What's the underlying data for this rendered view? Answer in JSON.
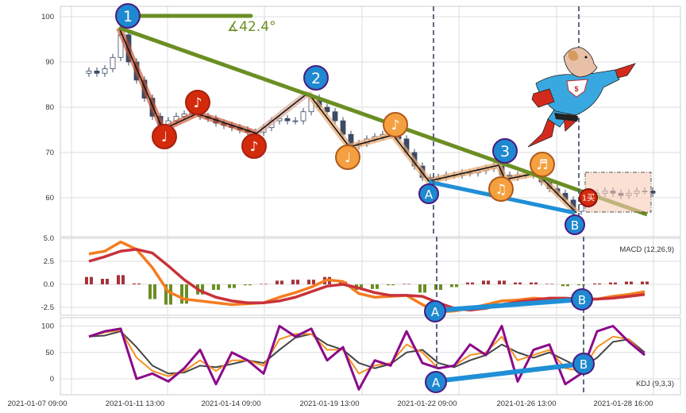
{
  "chart_data": {
    "type": "candlestick",
    "x_tick_labels": [
      "2021-01-07 09:00",
      "2021-01-11 13:00",
      "2021-01-14 09:00",
      "2021-01-19 13:00",
      "2021-01-22 09:00",
      "2021-01-26 13:00",
      "2021-01-28 16:00"
    ],
    "price": {
      "y_ticks": [
        60,
        70,
        80,
        90,
        100
      ],
      "ylim": [
        52,
        102.5
      ],
      "closes": [
        88,
        87.5,
        88.5,
        91,
        96,
        90,
        86,
        82,
        78,
        76,
        77,
        78,
        78.5,
        79,
        78,
        77.5,
        76.5,
        76,
        75.5,
        75,
        74.5,
        74.5,
        75.5,
        77,
        77.5,
        77,
        77,
        79,
        82,
        80,
        79,
        77,
        74,
        71.5,
        72,
        73,
        73.5,
        74,
        74,
        73,
        70,
        67,
        64.5,
        64,
        64.5,
        65,
        65,
        65.5,
        65.5,
        66,
        66.5,
        67,
        65,
        64.5,
        65,
        65,
        65.5,
        63.5,
        62,
        61,
        59.5,
        57,
        58.5,
        60,
        61,
        61.5,
        61,
        60.5,
        61,
        61.5,
        61.5,
        61
      ],
      "first_open": 87.5,
      "angle_label": "∡42.4°",
      "wave_labels": [
        "1",
        "2",
        "3"
      ],
      "divergence_labels": [
        "A",
        "B"
      ],
      "buy_signal": "1买",
      "note_icons": [
        "♩",
        "♪",
        "♪",
        "♩",
        "♪",
        "♫",
        "♬"
      ],
      "colors": {
        "up": "#ffffff",
        "down": "#3b4a66",
        "trend": "#6b8e23",
        "divergence": "#1f8fd6",
        "marker": "#1e88d0",
        "note_red": "#d42a0c",
        "note_orange": "#f5a040"
      }
    },
    "macd": {
      "label": "MACD (12,26,9)",
      "y_ticks": [
        -2.5,
        0.0,
        2.5,
        5.0
      ],
      "y_tick_labels": [
        "-2.5",
        "0.0",
        "2.5",
        "5.0"
      ],
      "ylim": [
        -3.3,
        5.0
      ],
      "sample_every": 2,
      "dif": [
        3.3,
        3.6,
        4.6,
        3.8,
        1.8,
        -0.8,
        -1.6,
        -1.8,
        -2.0,
        -2.2,
        -2.1,
        -2.0,
        -1.4,
        -0.9,
        -0.3,
        0.5,
        0.3,
        -1.0,
        -1.4,
        -1.3,
        -1.2,
        -2.2,
        -3.0,
        -2.9,
        -2.6,
        -2.2,
        -1.8,
        -1.7,
        -1.5,
        -1.6,
        -1.7,
        -1.7,
        -1.6,
        -1.3,
        -1.1,
        -0.8
      ],
      "dea": [
        2.5,
        3.0,
        3.6,
        3.8,
        3.4,
        2.0,
        0.5,
        -0.7,
        -1.4,
        -1.8,
        -2.0,
        -2.0,
        -1.8,
        -1.4,
        -0.8,
        -0.2,
        0.0,
        -0.4,
        -0.9,
        -1.2,
        -1.2,
        -1.3,
        -2.0,
        -2.6,
        -2.8,
        -2.6,
        -2.2,
        -1.9,
        -1.7,
        -1.5,
        -1.5,
        -1.6,
        -1.6,
        -1.5,
        -1.3,
        -1.1
      ],
      "hist": [
        0.8,
        0.6,
        1.0,
        0.1,
        -1.6,
        -2.2,
        -2.1,
        -1.1,
        -0.6,
        -0.4,
        -0.1,
        0.05,
        0.4,
        0.5,
        0.5,
        0.8,
        0.3,
        -0.6,
        -0.5,
        -0.1,
        0.05,
        -0.9,
        -0.6,
        -0.3,
        0.2,
        0.4,
        0.4,
        0.2,
        0.2,
        0.05,
        -0.2,
        -0.1,
        0.1,
        0.2,
        0.3,
        0.3
      ]
    },
    "kdj": {
      "label": "KDJ (9,3,3)",
      "y_ticks": [
        0,
        50,
        100
      ],
      "ylim": [
        -30,
        115
      ],
      "sample_every": 2,
      "k": [
        80,
        88,
        92,
        40,
        15,
        5,
        15,
        35,
        15,
        35,
        35,
        25,
        75,
        85,
        85,
        55,
        55,
        10,
        25,
        30,
        65,
        50,
        20,
        25,
        45,
        50,
        80,
        35,
        45,
        55,
        20,
        15,
        60,
        80,
        75,
        45
      ],
      "d": [
        80,
        82,
        90,
        60,
        25,
        10,
        12,
        25,
        22,
        28,
        35,
        30,
        55,
        78,
        85,
        65,
        55,
        30,
        20,
        28,
        50,
        55,
        30,
        22,
        35,
        45,
        65,
        50,
        40,
        50,
        35,
        20,
        40,
        70,
        75,
        50
      ],
      "j": [
        80,
        90,
        95,
        0,
        10,
        -5,
        20,
        55,
        -10,
        50,
        35,
        10,
        100,
        80,
        95,
        35,
        60,
        -20,
        35,
        25,
        90,
        30,
        20,
        25,
        65,
        45,
        100,
        -5,
        55,
        65,
        -10,
        10,
        90,
        100,
        70,
        45
      ]
    }
  }
}
